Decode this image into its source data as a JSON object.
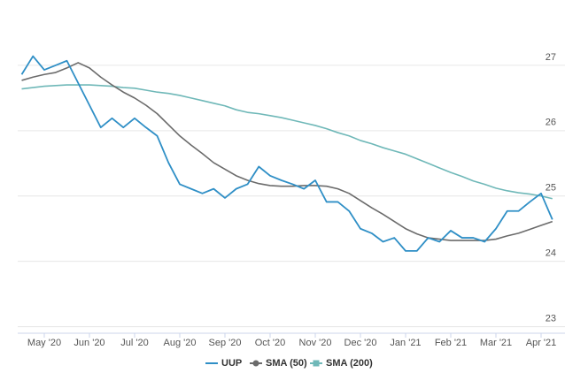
{
  "chart_data": {
    "type": "line",
    "categories": [
      null,
      null,
      "May '20",
      null,
      null,
      null,
      "Jun '20",
      null,
      null,
      null,
      "Jul '20",
      null,
      null,
      null,
      "Aug '20",
      null,
      null,
      null,
      "Sep '20",
      null,
      null,
      null,
      "Oct '20",
      null,
      null,
      null,
      "Nov '20",
      null,
      null,
      null,
      "Dec '20",
      null,
      null,
      null,
      "Jan '21",
      null,
      null,
      null,
      "Feb '21",
      null,
      null,
      null,
      "Mar '21",
      null,
      null,
      null,
      "Apr '21",
      null
    ],
    "series": [
      {
        "name": "UUP",
        "color": "#2f8fc6",
        "values": [
          26.86,
          27.14,
          26.93,
          27.0,
          27.07,
          26.73,
          26.39,
          26.05,
          26.19,
          26.05,
          26.19,
          26.05,
          25.92,
          25.51,
          25.18,
          25.11,
          25.04,
          25.11,
          24.97,
          25.11,
          25.18,
          25.45,
          25.31,
          25.24,
          25.18,
          25.11,
          25.24,
          24.91,
          24.91,
          24.77,
          24.5,
          24.43,
          24.3,
          24.36,
          24.16,
          24.16,
          24.36,
          24.3,
          24.47,
          24.36,
          24.36,
          24.3,
          24.5,
          24.77,
          24.77,
          24.91,
          25.04,
          24.64
        ]
      },
      {
        "name": "SMA (50)",
        "color": "#6b6b6b",
        "values": [
          26.77,
          26.82,
          26.86,
          26.89,
          26.96,
          27.04,
          26.96,
          26.82,
          26.7,
          26.59,
          26.5,
          26.39,
          26.26,
          26.09,
          25.92,
          25.78,
          25.65,
          25.51,
          25.41,
          25.31,
          25.24,
          25.19,
          25.16,
          25.15,
          25.15,
          25.16,
          25.16,
          25.15,
          25.11,
          25.04,
          24.93,
          24.82,
          24.72,
          24.61,
          24.5,
          24.42,
          24.36,
          24.34,
          24.32,
          24.32,
          24.32,
          24.32,
          24.34,
          24.39,
          24.43,
          24.49,
          24.55,
          24.61
        ]
      },
      {
        "name": "SMA (200)",
        "color": "#6fb8b8",
        "values": [
          26.64,
          26.66,
          26.68,
          26.69,
          26.7,
          26.7,
          26.7,
          26.69,
          26.68,
          26.66,
          26.65,
          26.62,
          26.59,
          26.57,
          26.54,
          26.5,
          26.46,
          26.42,
          26.38,
          26.32,
          26.28,
          26.26,
          26.23,
          26.2,
          26.16,
          26.12,
          26.08,
          26.03,
          25.97,
          25.92,
          25.85,
          25.8,
          25.74,
          25.69,
          25.64,
          25.57,
          25.5,
          25.43,
          25.36,
          25.3,
          25.23,
          25.18,
          25.12,
          25.08,
          25.05,
          25.03,
          25.0,
          24.96
        ]
      }
    ],
    "ylim": [
      22.9,
      28
    ],
    "yticks": [
      23,
      24,
      25,
      26,
      27
    ],
    "grid": true
  }
}
